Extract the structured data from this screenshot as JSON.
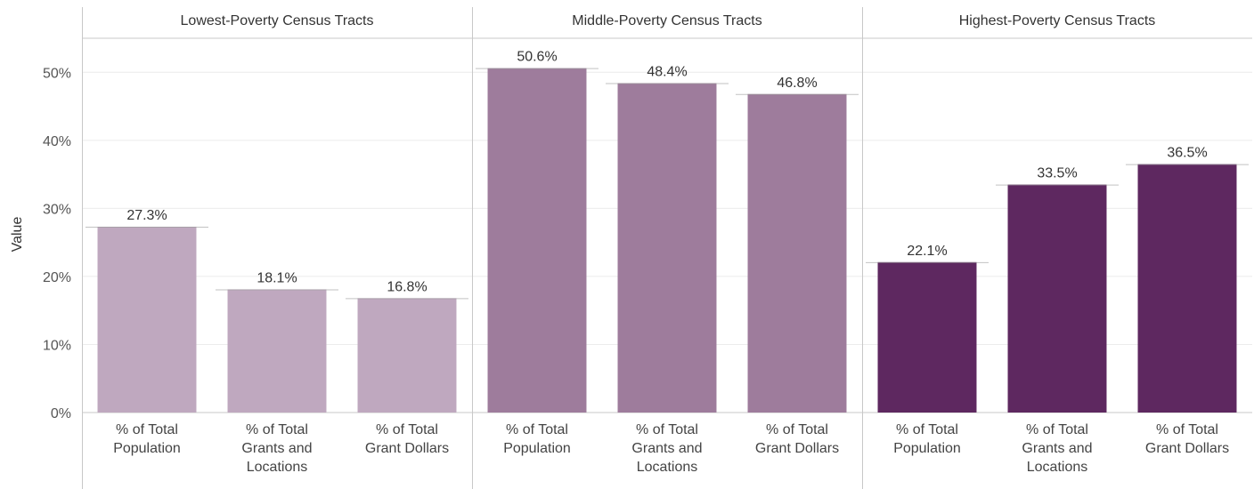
{
  "chart_data": {
    "type": "bar",
    "ylabel": "Value",
    "ylim": [
      0,
      55
    ],
    "y_ticks": [
      "0%",
      "10%",
      "20%",
      "30%",
      "40%",
      "50%"
    ],
    "y_tick_values": [
      0,
      10,
      20,
      30,
      40,
      50
    ],
    "grid": true,
    "categories": [
      [
        "% of Total",
        "Population"
      ],
      [
        "% of Total",
        "Grants and",
        "Locations"
      ],
      [
        "% of Total",
        "Grant Dollars"
      ]
    ],
    "panels": [
      {
        "title": "Lowest-Poverty Census Tracts",
        "color": "#bfa8bf",
        "values": [
          27.3,
          18.1,
          16.8
        ],
        "labels": [
          "27.3%",
          "18.1%",
          "16.8%"
        ]
      },
      {
        "title": "Middle-Poverty Census Tracts",
        "color": "#9e7c9c",
        "values": [
          50.6,
          48.4,
          46.8
        ],
        "labels": [
          "50.6%",
          "48.4%",
          "46.8%"
        ]
      },
      {
        "title": "Highest-Poverty Census Tracts",
        "color": "#5e2860",
        "values": [
          22.1,
          33.5,
          36.5
        ],
        "labels": [
          "22.1%",
          "33.5%",
          "36.5%"
        ]
      }
    ]
  }
}
